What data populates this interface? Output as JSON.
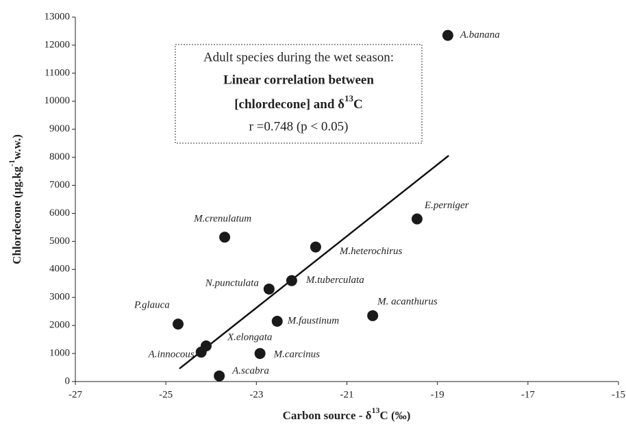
{
  "chart_data": {
    "type": "scatter",
    "x_label": [
      "Carbon source - δ",
      "13",
      "C (‰)"
    ],
    "y_label": [
      "Chlordecone (µg.kg",
      "-1",
      "w.w.)"
    ],
    "annotation": {
      "line1": "Adult species during the wet season:",
      "line2": "Linear correlation between",
      "line3": [
        "[chlordecone] and δ",
        "13",
        "C"
      ],
      "line4": "r =0.748 (p < 0.05)"
    },
    "labels": [
      "A.banana",
      "E.perniger",
      "M.heterochirus",
      "M.crenulatum",
      "M.tuberculata",
      "N.punctulata",
      "M.faustinum",
      "M. acanthurus",
      "P.glauca",
      "X.elongata",
      "A.innocous",
      "M.carcinus",
      "A.scabra"
    ],
    "x": [
      -18.77,
      -19.45,
      -21.69,
      -23.7,
      -22.22,
      -22.72,
      -22.54,
      -20.43,
      -24.73,
      -24.11,
      -24.22,
      -22.92,
      -23.82
    ],
    "values": [
      12350,
      5800,
      4800,
      5150,
      3600,
      3300,
      2150,
      2350,
      2050,
      1270,
      1050,
      1000,
      200
    ],
    "color": "#1a1a1a",
    "trendline": {
      "x": [
        -24.7,
        -18.75
      ],
      "y": [
        460,
        8060
      ]
    },
    "xlim": [
      -27,
      -15
    ],
    "xticks": [
      -27,
      -25,
      -23,
      -21,
      -19,
      -17,
      -15
    ],
    "ylim": [
      0,
      13000
    ],
    "yticks": [
      0,
      1000,
      2000,
      3000,
      4000,
      5000,
      6000,
      7000,
      8000,
      9000,
      10000,
      11000,
      12000,
      13000
    ],
    "grid": false
  }
}
